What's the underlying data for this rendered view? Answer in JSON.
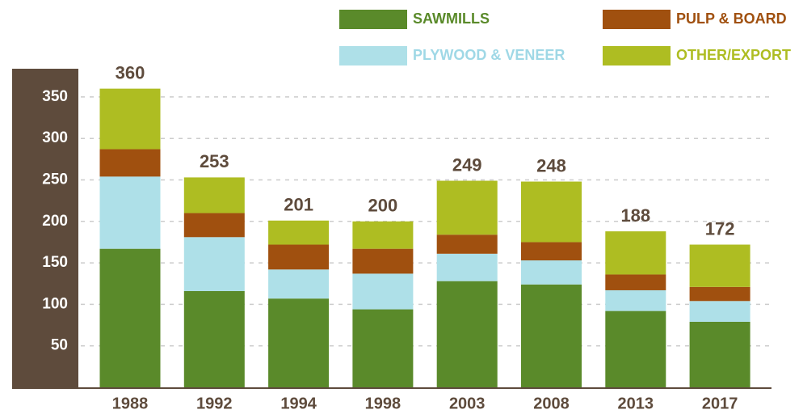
{
  "chart_data": {
    "type": "stacked_bar",
    "categories": [
      "1988",
      "1992",
      "1994",
      "1998",
      "2003",
      "2008",
      "2013",
      "2017"
    ],
    "series": [
      {
        "name": "SAWMILLS",
        "color": "#5a8a2a",
        "values": [
          167,
          116,
          107,
          94,
          128,
          124,
          92,
          79
        ]
      },
      {
        "name": "PLYWOOD & VENEER",
        "color": "#aee0e8",
        "values": [
          87,
          65,
          35,
          43,
          33,
          29,
          25,
          25
        ]
      },
      {
        "name": "PULP & BOARD",
        "color": "#a0500f",
        "values": [
          33,
          29,
          30,
          30,
          23,
          22,
          19,
          17
        ]
      },
      {
        "name": "OTHER/EXPORT",
        "color": "#aebd22",
        "values": [
          73,
          43,
          29,
          33,
          65,
          73,
          52,
          51
        ]
      }
    ],
    "totals": [
      360,
      253,
      201,
      200,
      249,
      248,
      188,
      172
    ],
    "ylim": [
      0,
      384
    ],
    "yticks": [
      50,
      100,
      150,
      200,
      250,
      300,
      350
    ],
    "grid": true
  }
}
